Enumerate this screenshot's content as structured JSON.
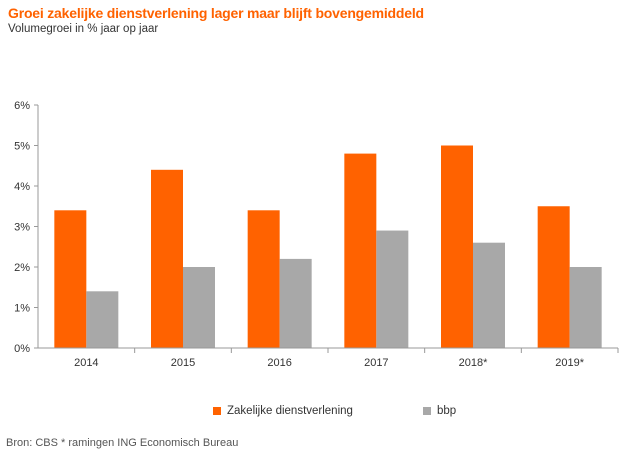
{
  "title": "Groei zakelijke dienstverlening lager maar blijft bovengemiddeld",
  "subtitle": "Volumegroei in % jaar op jaar",
  "source": "Bron: CBS * ramingen ING Economisch Bureau",
  "colors": {
    "orange": "#ff6200",
    "grey": "#a8a8a8",
    "title": "#ff6200"
  },
  "chart_data": {
    "type": "bar",
    "categories": [
      "2014",
      "2015",
      "2016",
      "2017",
      "2018*",
      "2019*"
    ],
    "series": [
      {
        "name": "Zakelijke dienstverlening",
        "color": "#ff6200",
        "values": [
          3.4,
          4.4,
          3.4,
          4.8,
          5.0,
          3.5
        ]
      },
      {
        "name": "bbp",
        "color": "#a8a8a8",
        "values": [
          1.4,
          2.0,
          2.2,
          2.9,
          2.6,
          2.0
        ]
      }
    ],
    "ylim": [
      0,
      6
    ],
    "yticks": [
      0,
      1,
      2,
      3,
      4,
      5,
      6
    ],
    "ytick_labels": [
      "0%",
      "1%",
      "2%",
      "3%",
      "4%",
      "5%",
      "6%"
    ],
    "grid": false,
    "legend": "bottom"
  }
}
